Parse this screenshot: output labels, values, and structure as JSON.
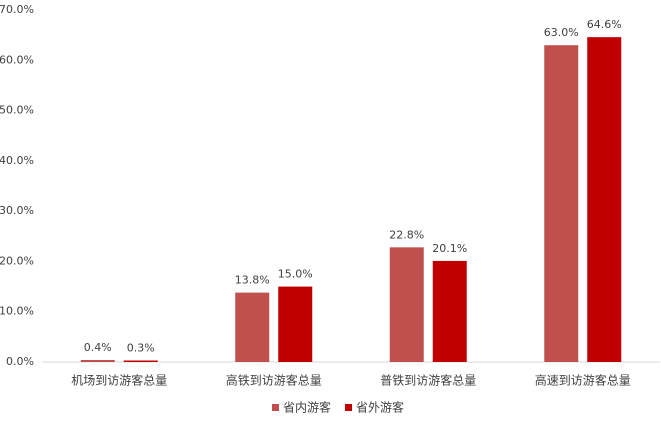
{
  "chart_data": {
    "type": "bar",
    "categories": [
      "机场到访游客总量",
      "高铁到访游客总量",
      "普铁到访游客总量",
      "高速到访游客总量"
    ],
    "series": [
      {
        "name": "省内游客",
        "color": "#c0504d",
        "values": [
          0.4,
          13.8,
          22.8,
          63.0
        ],
        "value_labels": [
          "0.4%",
          "13.8%",
          "22.8%",
          "63.0%"
        ]
      },
      {
        "name": "省外游客",
        "color": "#c00000",
        "values": [
          0.3,
          15.0,
          20.1,
          64.6
        ],
        "value_labels": [
          "0.3%",
          "15.0%",
          "20.1%",
          "64.6%"
        ]
      }
    ],
    "ylim": [
      0,
      70
    ],
    "yticks": [
      {
        "value": 0,
        "label": "0.0%"
      },
      {
        "value": 10,
        "label": "10.0%"
      },
      {
        "value": 20,
        "label": "20.0%"
      },
      {
        "value": 30,
        "label": "30.0%"
      },
      {
        "value": 40,
        "label": "40.0%"
      },
      {
        "value": 50,
        "label": "50.0%"
      },
      {
        "value": 60,
        "label": "60.0%"
      },
      {
        "value": 70,
        "label": "70.0%"
      }
    ],
    "grid": false,
    "legend": "bottom"
  }
}
